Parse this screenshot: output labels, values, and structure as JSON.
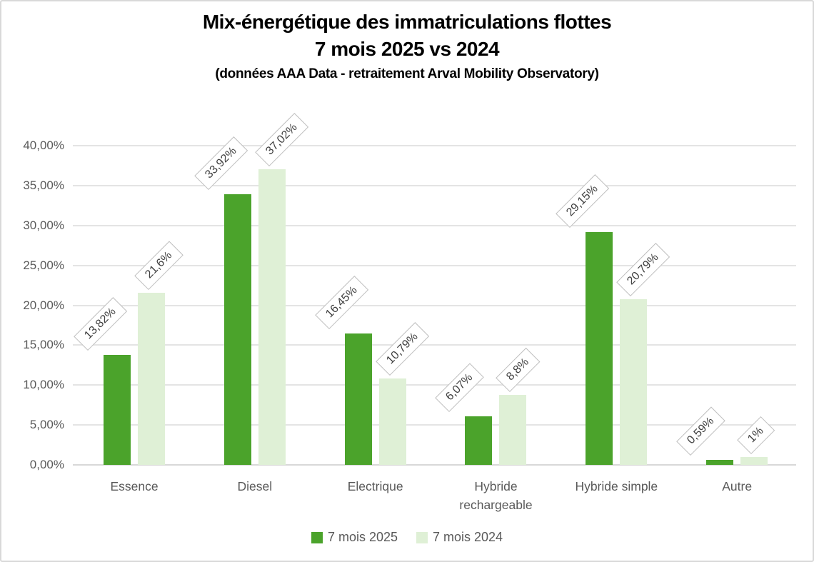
{
  "chart_data": {
    "type": "bar",
    "title": "Mix-énergétique des immatriculations flottes",
    "title_line2": "7 mois 2025 vs 2024",
    "subtitle": "(données AAA Data - retraitement Arval Mobility Observatory)",
    "categories": [
      "Essence",
      "Diesel",
      "Electrique",
      "Hybride rechargeable",
      "Hybride simple",
      "Autre"
    ],
    "series": [
      {
        "name": "7 mois 2025",
        "color": "#4ba32b",
        "values": [
          13.82,
          33.92,
          16.45,
          6.07,
          29.15,
          0.59
        ],
        "labels": [
          "13,82%",
          "33,92%",
          "16,45%",
          "6,07%",
          "29,15%",
          "0,59%"
        ]
      },
      {
        "name": "7 mois 2024",
        "color": "#dff0d6",
        "values": [
          21.6,
          37.02,
          10.79,
          8.8,
          20.79,
          1.0
        ],
        "labels": [
          "21,6%",
          "37,02%",
          "10,79%",
          "8,8%",
          "20,79%",
          "1%"
        ]
      }
    ],
    "yticks": [
      "0,00%",
      "5,00%",
      "10,00%",
      "15,00%",
      "20,00%",
      "25,00%",
      "30,00%",
      "35,00%",
      "40,00%"
    ],
    "ylim": [
      0,
      40
    ],
    "ytick_step": 5,
    "grid": true,
    "legend_position": "bottom",
    "axis_label_color": "#595959",
    "data_label_border_color": "#bfbfbf"
  }
}
